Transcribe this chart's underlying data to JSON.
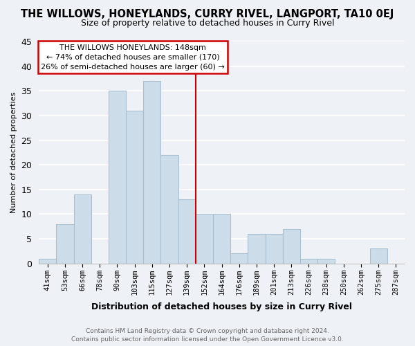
{
  "title": "THE WILLOWS, HONEYLANDS, CURRY RIVEL, LANGPORT, TA10 0EJ",
  "subtitle": "Size of property relative to detached houses in Curry Rivel",
  "xlabel": "Distribution of detached houses by size in Curry Rivel",
  "ylabel": "Number of detached properties",
  "bar_labels": [
    "41sqm",
    "53sqm",
    "66sqm",
    "78sqm",
    "90sqm",
    "103sqm",
    "115sqm",
    "127sqm",
    "139sqm",
    "152sqm",
    "164sqm",
    "176sqm",
    "189sqm",
    "201sqm",
    "213sqm",
    "226sqm",
    "238sqm",
    "250sqm",
    "262sqm",
    "275sqm",
    "287sqm"
  ],
  "bar_values": [
    1,
    8,
    14,
    0,
    35,
    31,
    37,
    22,
    13,
    10,
    10,
    2,
    6,
    6,
    7,
    1,
    1,
    0,
    0,
    3,
    0
  ],
  "bar_color": "#ccdce8",
  "bar_edge_color": "#aabfd0",
  "vline_x_index": 9,
  "vline_color": "#cc0000",
  "annotation_title": "THE WILLOWS HONEYLANDS: 148sqm",
  "annotation_line1": "← 74% of detached houses are smaller (170)",
  "annotation_line2": "26% of semi-detached houses are larger (60) →",
  "annotation_box_facecolor": "white",
  "annotation_box_edgecolor": "#cc0000",
  "ylim": [
    0,
    45
  ],
  "yticks": [
    0,
    5,
    10,
    15,
    20,
    25,
    30,
    35,
    40,
    45
  ],
  "footer1": "Contains HM Land Registry data © Crown copyright and database right 2024.",
  "footer2": "Contains public sector information licensed under the Open Government Licence v3.0.",
  "background_color": "#eef2f7",
  "grid_color": "white",
  "title_fontsize": 10.5,
  "subtitle_fontsize": 9,
  "ylabel_fontsize": 8,
  "xlabel_fontsize": 9
}
